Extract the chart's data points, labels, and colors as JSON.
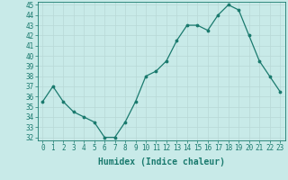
{
  "x": [
    0,
    1,
    2,
    3,
    4,
    5,
    6,
    7,
    8,
    9,
    10,
    11,
    12,
    13,
    14,
    15,
    16,
    17,
    18,
    19,
    20,
    21,
    22,
    23
  ],
  "y": [
    35.5,
    37.0,
    35.5,
    34.5,
    34.0,
    33.5,
    32.0,
    32.0,
    33.5,
    35.5,
    38.0,
    38.5,
    39.5,
    41.5,
    43.0,
    43.0,
    42.5,
    44.0,
    45.0,
    44.5,
    42.0,
    39.5,
    38.0,
    36.5
  ],
  "xlabel": "Humidex (Indice chaleur)",
  "ylim": [
    32,
    45
  ],
  "xlim": [
    -0.5,
    23.5
  ],
  "yticks": [
    32,
    33,
    34,
    35,
    36,
    37,
    38,
    39,
    40,
    41,
    42,
    43,
    44,
    45
  ],
  "xticks": [
    0,
    1,
    2,
    3,
    4,
    5,
    6,
    7,
    8,
    9,
    10,
    11,
    12,
    13,
    14,
    15,
    16,
    17,
    18,
    19,
    20,
    21,
    22,
    23
  ],
  "line_color": "#1a7a6e",
  "marker_color": "#1a7a6e",
  "bg_color": "#c8eae8",
  "grid_color": "#b8d8d6",
  "tick_label_color": "#1a7a6e",
  "xlabel_color": "#1a7a6e",
  "font_family": "monospace",
  "tick_fontsize": 5.5,
  "xlabel_fontsize": 7.0
}
